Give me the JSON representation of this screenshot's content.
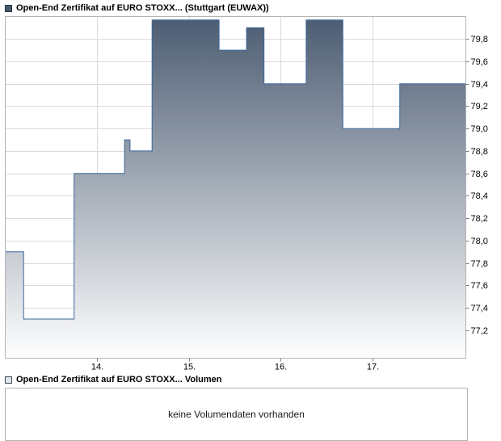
{
  "header": {
    "title": "Open-End Zertifikat auf EURO STOXX... (Stuttgart (EUWAX))"
  },
  "volume": {
    "legend": "Open-End Zertifikat auf EURO STOXX... Volumen",
    "message": "keine Volumendaten vorhanden"
  },
  "colors": {
    "area_top": "#4d5d73",
    "area_bottom": "#fefefe",
    "line": "#3a679c",
    "grid": "#d9d9d9",
    "plot_border": "#b3b3b3",
    "tick": "#808080",
    "axis_text": "#000000",
    "price_swatch": "#47586f",
    "volume_swatch": "#dde6ef"
  },
  "chart_data": {
    "type": "area",
    "step": true,
    "title": "Open-End Zertifikat auf EURO STOXX... (Stuttgart (EUWAX))",
    "legend_position": "top-left",
    "grid": true,
    "y_axis_side": "right",
    "xlabel": "",
    "ylabel": "",
    "xlim": [
      13.0,
      18.02
    ],
    "ylim": [
      76.95,
      80.0
    ],
    "xticks": [
      14,
      15,
      16,
      17
    ],
    "xtick_labels": [
      "14.",
      "15.",
      "16.",
      "17."
    ],
    "yticks": [
      77.2,
      77.4,
      77.6,
      77.8,
      78.0,
      78.2,
      78.4,
      78.6,
      78.8,
      79.0,
      79.2,
      79.4,
      79.6,
      79.8
    ],
    "ytick_labels": [
      "77,2",
      "77,4",
      "77,6",
      "77,8",
      "78,0",
      "78,2",
      "78,4",
      "78,6",
      "78,8",
      "79,0",
      "79,2",
      "79,4",
      "79,6",
      "79,8"
    ],
    "series": [
      {
        "name": "Open-End Zertifikat auf EURO STOXX... (Stuttgart (EUWAX))",
        "step_points": [
          {
            "x": 13.0,
            "y": 77.9
          },
          {
            "x": 13.2,
            "y": 77.3
          },
          {
            "x": 13.75,
            "y": 78.6
          },
          {
            "x": 14.3,
            "y": 78.9
          },
          {
            "x": 14.36,
            "y": 78.8
          },
          {
            "x": 14.6,
            "y": 79.97
          },
          {
            "x": 15.33,
            "y": 79.7
          },
          {
            "x": 15.63,
            "y": 79.9
          },
          {
            "x": 15.82,
            "y": 79.4
          },
          {
            "x": 16.28,
            "y": 79.97
          },
          {
            "x": 16.68,
            "y": 79.0
          },
          {
            "x": 17.3,
            "y": 79.4
          }
        ]
      }
    ],
    "volume_chart": {
      "type": "bar",
      "name": "Open-End Zertifikat auf EURO STOXX... Volumen",
      "values": [],
      "empty_message": "keine Volumendaten vorhanden"
    }
  }
}
